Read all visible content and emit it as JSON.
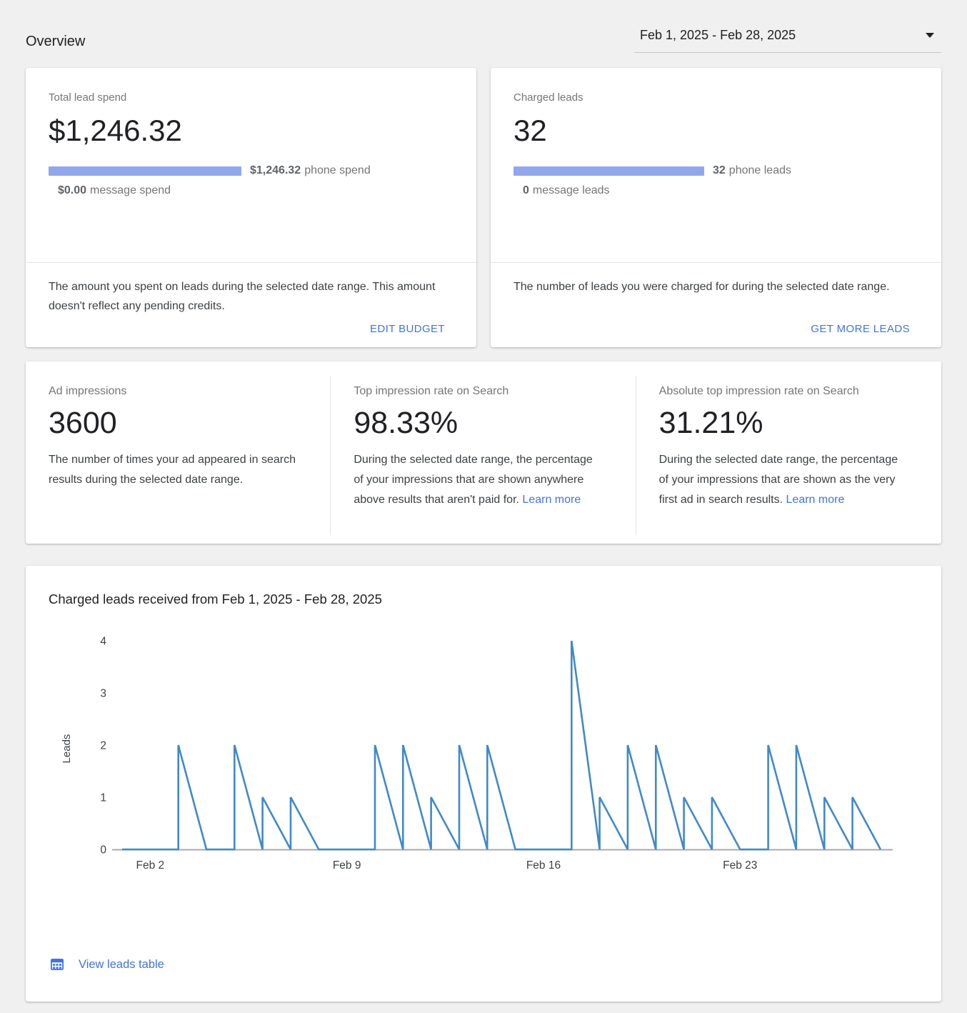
{
  "header": {
    "title": "Overview",
    "date_range": "Feb 1, 2025 - Feb 28, 2025"
  },
  "cards": {
    "lead_spend": {
      "title": "Total lead spend",
      "value": "$1,246.32",
      "phone_value": "$1,246.32",
      "phone_label": "phone spend",
      "message_value": "$0.00",
      "message_label": "message spend",
      "description": "The amount you spent on leads during the selected date range. This amount doesn't reflect any pending credits.",
      "action": "EDIT BUDGET"
    },
    "charged_leads": {
      "title": "Charged leads",
      "value": "32",
      "phone_value": "32",
      "phone_label": "phone leads",
      "message_value": "0",
      "message_label": "message leads",
      "description": "The number of leads you were charged for during the selected date range.",
      "action": "GET MORE LEADS"
    }
  },
  "stats": [
    {
      "title": "Ad impressions",
      "value": "3600",
      "description": "The number of times your ad appeared in search results during the selected date range.",
      "link": ""
    },
    {
      "title": "Top impression rate on Search",
      "value": "98.33%",
      "description": "During the selected date range, the percentage of your impressions that are shown anywhere above results that aren't paid for.",
      "link": "Learn more"
    },
    {
      "title": "Absolute top impression rate on Search",
      "value": "31.21%",
      "description": "During the selected date range, the percentage of your impressions that are shown as the very first ad in search results.",
      "link": "Learn more"
    }
  ],
  "chart_card": {
    "title": "Charged leads received from Feb 1, 2025 - Feb 28, 2025",
    "view_table_label": "View leads table"
  },
  "chart_data": {
    "type": "line",
    "title": "Charged leads received from Feb 1, 2025 - Feb 28, 2025",
    "xlabel": "",
    "ylabel": "Leads",
    "ylim": [
      0,
      4
    ],
    "y_ticks": [
      0,
      1,
      2,
      3,
      4
    ],
    "x": [
      "Feb 1",
      "Feb 2",
      "Feb 3",
      "Feb 4",
      "Feb 5",
      "Feb 6",
      "Feb 7",
      "Feb 8",
      "Feb 9",
      "Feb 10",
      "Feb 11",
      "Feb 12",
      "Feb 13",
      "Feb 14",
      "Feb 15",
      "Feb 16",
      "Feb 17",
      "Feb 18",
      "Feb 19",
      "Feb 20",
      "Feb 21",
      "Feb 22",
      "Feb 23",
      "Feb 24",
      "Feb 25",
      "Feb 26",
      "Feb 27",
      "Feb 28"
    ],
    "values": [
      0,
      0,
      2,
      0,
      2,
      1,
      1,
      0,
      0,
      2,
      2,
      1,
      2,
      2,
      0,
      0,
      4,
      1,
      2,
      2,
      1,
      1,
      0,
      2,
      2,
      1,
      1,
      0
    ],
    "total": 32,
    "x_ticks": [
      {
        "day": 2,
        "label": "Feb 2"
      },
      {
        "day": 9,
        "label": "Feb 9"
      },
      {
        "day": 16,
        "label": "Feb 16"
      },
      {
        "day": 23,
        "label": "Feb 23"
      }
    ],
    "grid": false,
    "legend": false,
    "render_style": "daily value rises vertically at each day and declines linearly to 0 by the next day"
  },
  "colors": {
    "accent": "#4273e0",
    "bar": "#91a7ec",
    "line": "#4189c7",
    "axis": "#a9a9a9",
    "page_bg": "#f0f0f0"
  }
}
